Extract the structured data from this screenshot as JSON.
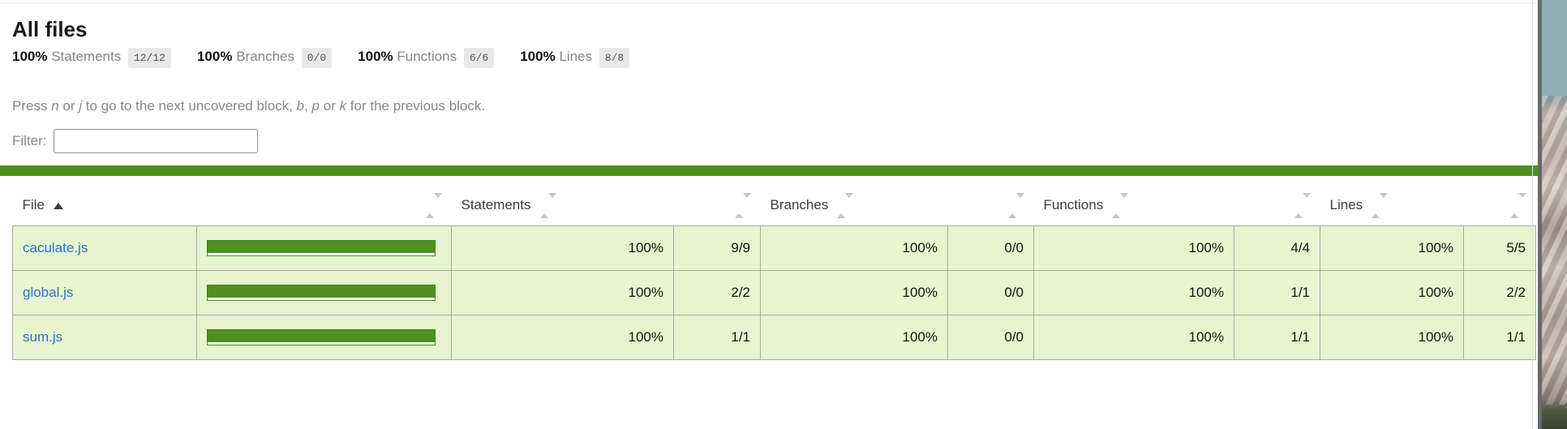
{
  "title": "All files",
  "summary": {
    "groups": [
      {
        "pct": "100%",
        "label": "Statements",
        "fraction": "12/12"
      },
      {
        "pct": "100%",
        "label": "Branches",
        "fraction": "0/0"
      },
      {
        "pct": "100%",
        "label": "Functions",
        "fraction": "6/6"
      },
      {
        "pct": "100%",
        "label": "Lines",
        "fraction": "8/8"
      }
    ]
  },
  "hint": {
    "parts": [
      "Press ",
      "n",
      " or ",
      "j",
      " to go to the next uncovered block, ",
      "b",
      ", ",
      "p",
      " or ",
      "k",
      " for the previous block."
    ]
  },
  "filter": {
    "label": "Filter:",
    "value": "",
    "placeholder": ""
  },
  "table": {
    "headers": {
      "file": "File",
      "statements": "Statements",
      "branches": "Branches",
      "functions": "Functions",
      "lines": "Lines"
    },
    "rows": [
      {
        "file": "caculate.js",
        "coverage_pct": 100,
        "statements_pct": "100%",
        "statements": "9/9",
        "branches_pct": "100%",
        "branches": "0/0",
        "functions_pct": "100%",
        "functions": "4/4",
        "lines_pct": "100%",
        "lines": "5/5"
      },
      {
        "file": "global.js",
        "coverage_pct": 100,
        "statements_pct": "100%",
        "statements": "2/2",
        "branches_pct": "100%",
        "branches": "0/0",
        "functions_pct": "100%",
        "functions": "1/1",
        "lines_pct": "100%",
        "lines": "2/2"
      },
      {
        "file": "sum.js",
        "coverage_pct": 100,
        "statements_pct": "100%",
        "statements": "1/1",
        "branches_pct": "100%",
        "branches": "0/0",
        "functions_pct": "100%",
        "functions": "1/1",
        "lines_pct": "100%",
        "lines": "1/1"
      }
    ]
  },
  "colors": {
    "status_green": "#4d9221",
    "row_bg_high": "#e6f5d0",
    "link_blue": "#2d72c8",
    "fraction_pill_bg": "#e8e8e8"
  }
}
